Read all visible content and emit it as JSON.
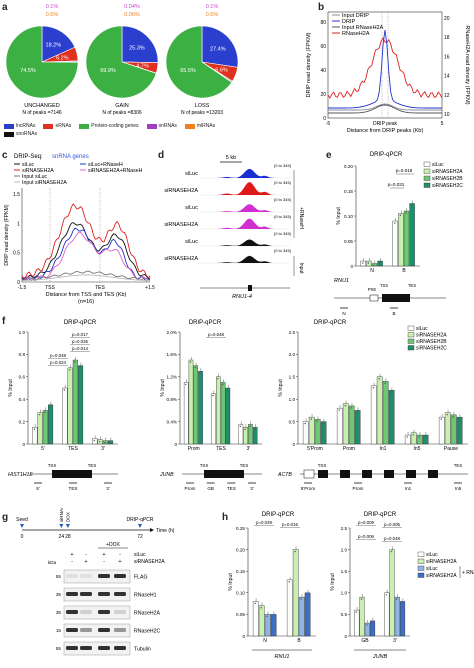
{
  "panels": {
    "a": {
      "label": "a",
      "pies": [
        {
          "name": "UNCHANGED",
          "n_text": "N of peaks =7146",
          "slices": [
            {
              "cat": "lncRNAs",
              "value": 18.2,
              "text": "18.2%"
            },
            {
              "cat": "eRNAs",
              "value": 6.2,
              "text": "6.2%"
            },
            {
              "cat": "snRNAs",
              "value": 0.5,
              "text": "0.5%"
            },
            {
              "cat": "miRNAs",
              "value": 0.1,
              "text": "0.1%"
            },
            {
              "cat": "Protein-coding genes",
              "value": 74.5,
              "text": "74.5%"
            }
          ]
        },
        {
          "name": "GAIN",
          "n_text": "N of peaks =8306",
          "slices": [
            {
              "cat": "lncRNAs",
              "value": 25.3,
              "text": "25.3%"
            },
            {
              "cat": "eRNAs",
              "value": 4.7,
              "text": "4.7%"
            },
            {
              "cat": "snRNAs",
              "value": 0.06,
              "text": "0.06%"
            },
            {
              "cat": "miRNAs",
              "value": 0.04,
              "text": "0.04%"
            },
            {
              "cat": "Protein-coding genes",
              "value": 69.9,
              "text": "69.9%"
            }
          ]
        },
        {
          "name": "LOSS",
          "n_text": "N of peaks =13203",
          "slices": [
            {
              "cat": "lncRNAs",
              "value": 27.4,
              "text": "27.4%"
            },
            {
              "cat": "eRNAs",
              "value": 6.6,
              "text": "6.6%"
            },
            {
              "cat": "snRNAs",
              "value": 0.5,
              "text": "0.5%"
            },
            {
              "cat": "miRNAs",
              "value": 0.1,
              "text": "0.1%"
            },
            {
              "cat": "Protein-coding genes",
              "value": 65.5,
              "text": "65.5%"
            }
          ]
        }
      ],
      "legend": [
        {
          "label": "lncRNAs",
          "color": "#2b3fcf"
        },
        {
          "label": "eRNAs",
          "color": "#e0301e"
        },
        {
          "label": "Protein-coding genes",
          "color": "#3cb043"
        },
        {
          "label": "snRNAs",
          "color": "#a040c0"
        },
        {
          "label": "miRNAs",
          "color": "#f08020"
        },
        {
          "label": "snoRNAs",
          "color": "#111111"
        }
      ]
    },
    "b": {
      "label": "b",
      "legend": [
        {
          "label": "Input DRIP",
          "color": "#8a8aa8"
        },
        {
          "label": "DRIP",
          "color": "#2233cc"
        },
        {
          "label": "Input RNaseH2A",
          "color": "#555555"
        },
        {
          "label": "RNaseH2A",
          "color": "#dd2222"
        }
      ],
      "ylabel_left": "DRIP read density (FPKM)",
      "ylabel_right": "RNaseH2A read density (FPKM)",
      "xlabel": "Distance from DRIP peaks (Kb)",
      "peak_label": "DRIP peak",
      "yticks_left": [
        "0",
        "20",
        "40",
        "60",
        "80"
      ],
      "yticks_right": [
        "10",
        "12",
        "14",
        "16",
        "18",
        "20"
      ],
      "xticks": [
        "-5",
        "5"
      ]
    },
    "c": {
      "label": "c",
      "title_prefix": "DRIP-Seq:",
      "title_suffix": "snRNA genes",
      "legend_left": [
        {
          "label": "siLuc",
          "color": "#111111"
        },
        {
          "label": "siRNASEH2A",
          "color": "#dd2222"
        },
        {
          "label": "Input siLuc",
          "color": "#777777"
        },
        {
          "label": "Input siRNASEH2A",
          "color": "#bbbbbb"
        }
      ],
      "legend_right": [
        {
          "label": "siLuc+RNaseH",
          "color": "#2233cc"
        },
        {
          "label": "siRNASEH2A+RNaseH",
          "color": "#e060c0"
        }
      ],
      "ylabel": "DRIP read density (FPKM)",
      "xlabel": "Distance from TSS and TES (Kb)",
      "n_text": "(n=16)",
      "xticks": [
        "-1.5",
        "TSS",
        "TES",
        "+1.5"
      ],
      "yticks": [
        "0",
        "0.5",
        "1",
        "1.5"
      ]
    },
    "d": {
      "label": "d",
      "scale": "5 kb",
      "tracks": [
        {
          "name": "siLuc",
          "range": "(0 to 345)",
          "color": "#1a2fd0"
        },
        {
          "name": "siRNASEH2A",
          "range": "(0 to 345)",
          "color": "#e01818"
        },
        {
          "name": "siLuc",
          "range": "(0 to 345)",
          "color": "#d030d0"
        },
        {
          "name": "siRNASEH2A",
          "range": "(0 to 345)",
          "color": "#d030d0"
        },
        {
          "name": "siLuc",
          "range": "(0 to 345)",
          "color": "#111111"
        },
        {
          "name": "siRNASEH2A",
          "range": "(0 to 345)",
          "color": "#111111"
        }
      ],
      "side_labels": [
        "+RNaseH",
        "Input"
      ],
      "gene": "RNU1-4"
    },
    "e": {
      "label": "e",
      "title": "DRIP-qPCR",
      "ylabel": "% Input",
      "yticks": [
        "0",
        "0.05",
        "0.10",
        "0.15",
        "0.20"
      ],
      "pvals": [
        "p=0.018",
        "p=0.031"
      ],
      "legend": [
        {
          "label": "siLuc",
          "color": "#ffffff"
        },
        {
          "label": "siRNASEH2A",
          "color": "#c8f0b0"
        },
        {
          "label": "siRNASEH2B",
          "color": "#6cc872"
        },
        {
          "label": "siRNASEH2C",
          "color": "#1f8e6e"
        }
      ],
      "chart_data": {
        "type": "bar",
        "categories": [
          "N",
          "B"
        ],
        "series": [
          {
            "name": "siLuc",
            "values": [
              0.01,
              0.09
            ]
          },
          {
            "name": "siRNASEH2A",
            "values": [
              0.01,
              0.105
            ]
          },
          {
            "name": "siRNASEH2B",
            "values": [
              0.005,
              0.11
            ]
          },
          {
            "name": "siRNASEH2C",
            "values": [
              0.01,
              0.125
            ]
          }
        ],
        "ylim": [
          0,
          0.2
        ]
      },
      "gene": "RNU1",
      "gene_labels": [
        "PSE",
        "TSS",
        "TES",
        "N",
        "B"
      ]
    },
    "f": {
      "label": "f",
      "title": "DRIP-qPCR",
      "legend": [
        {
          "label": "siLuc",
          "color": "#ffffff"
        },
        {
          "label": "siRNASEH2A",
          "color": "#c8f0b0"
        },
        {
          "label": "siRNASEH2B",
          "color": "#6cc872"
        },
        {
          "label": "siRNASEH2C",
          "color": "#1f8e6e"
        }
      ],
      "charts": [
        {
          "ylabel": "% Input",
          "yticks": [
            "0",
            "0.2",
            "0.4",
            "0.6",
            "0.8",
            "1.0"
          ],
          "pvals": [
            "p=0.017",
            "p=0.026",
            "p=0.014",
            "p=0.048",
            "p=0.024"
          ],
          "chart_data": {
            "type": "bar",
            "categories": [
              "5'",
              "TES",
              "3'"
            ],
            "series": [
              {
                "name": "siLuc",
                "values": [
                  0.15,
                  0.5,
                  0.05
                ]
              },
              {
                "name": "siRNASEH2A",
                "values": [
                  0.28,
                  0.68,
                  0.04
                ]
              },
              {
                "name": "siRNASEH2B",
                "values": [
                  0.3,
                  0.75,
                  0.03
                ]
              },
              {
                "name": "siRNASEH2C",
                "values": [
                  0.35,
                  0.7,
                  0.03
                ]
              }
            ],
            "ylim": [
              0,
              1.0
            ]
          },
          "gene": "HIST1H1E",
          "gene_labels": [
            "TSS",
            "TES",
            "5'",
            "TES",
            "3'"
          ]
        },
        {
          "ylabel": "% Input",
          "yticks": [
            "0",
            "0.4%",
            "0.8%",
            "1.2%",
            "1.6%",
            "2.0%"
          ],
          "pvals": [
            "p=0.048"
          ],
          "chart_data": {
            "type": "bar",
            "categories": [
              "Prom",
              "TES",
              "3'"
            ],
            "series": [
              {
                "name": "siLuc",
                "values": [
                  1.1,
                  0.9,
                  0.35
                ]
              },
              {
                "name": "siRNASEH2A",
                "values": [
                  1.5,
                  1.2,
                  0.3
                ]
              },
              {
                "name": "siRNASEH2B",
                "values": [
                  1.4,
                  1.1,
                  0.35
                ]
              },
              {
                "name": "siRNASEH2C",
                "values": [
                  1.3,
                  1.0,
                  0.3
                ]
              }
            ],
            "ylim": [
              0,
              2.0
            ]
          },
          "gene": "JUNB",
          "gene_labels": [
            "TSS",
            "TES",
            "Prom",
            "GB",
            "TES",
            "3'"
          ]
        },
        {
          "ylabel": "% Input",
          "yticks": [
            "0",
            "0.5",
            "1.0",
            "1.5",
            "2.0",
            "2.5"
          ],
          "pvals": [],
          "chart_data": {
            "type": "bar",
            "categories": [
              "5'Prom",
              "Prom",
              "In1",
              "In5",
              "Pause"
            ],
            "series": [
              {
                "name": "siLuc",
                "values": [
                  0.5,
                  0.8,
                  1.3,
                  0.2,
                  0.6
                ]
              },
              {
                "name": "siRNASEH2A",
                "values": [
                  0.6,
                  0.9,
                  1.5,
                  0.25,
                  0.7
                ]
              },
              {
                "name": "siRNASEH2B",
                "values": [
                  0.55,
                  0.85,
                  1.4,
                  0.2,
                  0.65
                ]
              },
              {
                "name": "siRNASEH2C",
                "values": [
                  0.5,
                  0.75,
                  1.2,
                  0.2,
                  0.6
                ]
              }
            ],
            "ylim": [
              0,
              2.5
            ]
          },
          "gene": "ACTB",
          "gene_labels": [
            "TSS",
            "TES",
            "5'Prom",
            "Prom",
            "In1",
            "In5"
          ]
        }
      ]
    },
    "g": {
      "label": "g",
      "timeline": {
        "steps": [
          {
            "t": "0",
            "label": "Seed"
          },
          {
            "t": "24",
            "label": "siRNAs"
          },
          {
            "t": "28",
            "label": "DOX"
          },
          {
            "t": "72",
            "label": "DRIP-qPCR"
          }
        ],
        "unit": "Time (h)"
      },
      "header": "+DOX",
      "conditions": [
        {
          "label": "siLuc",
          "marks": [
            "+",
            "-",
            "+",
            "-"
          ]
        },
        {
          "label": "siRNASEH2A",
          "marks": [
            "-",
            "+",
            "-",
            "+"
          ]
        }
      ],
      "kda_label": "kDa",
      "blots": [
        {
          "label": "FLAG",
          "kda": "55"
        },
        {
          "label": "RNaseH1",
          "kda": "35"
        },
        {
          "label": "RNaseH2A",
          "kda": "35"
        },
        {
          "label": "RNaseH2C",
          "kda": "15"
        },
        {
          "label": "Tubulin",
          "kda": "55"
        }
      ]
    },
    "h": {
      "label": "h",
      "title": "DRIP-qPCR",
      "legend": [
        {
          "label": "siLuc",
          "color": "#ffffff"
        },
        {
          "label": "siRNASEH2A",
          "color": "#c8f0b0"
        },
        {
          "label": "siLuc",
          "color": "#8fb4e8"
        },
        {
          "label": "siRNASEH2A",
          "color": "#3a6fc8"
        }
      ],
      "legend_bracket": "+ RNaseH",
      "charts": [
        {
          "ylabel": "% Input",
          "yticks": [
            "0",
            "0.05",
            "0.10",
            "0.15",
            "0.20",
            "0.25"
          ],
          "pvals": [
            "p=0.029",
            "p=0.016"
          ],
          "gene": "RNU1",
          "chart_data": {
            "type": "bar",
            "categories": [
              "N",
              "B"
            ],
            "series": [
              {
                "name": "siLuc",
                "values": [
                  0.08,
                  0.13
                ]
              },
              {
                "name": "siRNASEH2A",
                "values": [
                  0.07,
                  0.2
                ]
              },
              {
                "name": "siLuc",
                "values": [
                  0.05,
                  0.09
                ]
              },
              {
                "name": "siRNASEH2A",
                "values": [
                  0.05,
                  0.1
                ]
              }
            ],
            "ylim": [
              0,
              0.25
            ]
          }
        },
        {
          "ylabel": "% Input",
          "yticks": [
            "0",
            "0.5",
            "1.0",
            "1.5",
            "2.0",
            "2.5"
          ],
          "pvals": [
            "p=0.009",
            "p=0.005",
            "p=0.006",
            "p=0.048"
          ],
          "gene": "JUNB",
          "chart_data": {
            "type": "bar",
            "categories": [
              "GB",
              "3'"
            ],
            "series": [
              {
                "name": "siLuc",
                "values": [
                  0.6,
                  1.0
                ]
              },
              {
                "name": "siRNASEH2A",
                "values": [
                  0.9,
                  2.0
                ]
              },
              {
                "name": "siLuc",
                "values": [
                  0.3,
                  0.9
                ]
              },
              {
                "name": "siRNASEH2A",
                "values": [
                  0.35,
                  0.8
                ]
              }
            ],
            "ylim": [
              0,
              2.5
            ]
          }
        }
      ]
    }
  }
}
